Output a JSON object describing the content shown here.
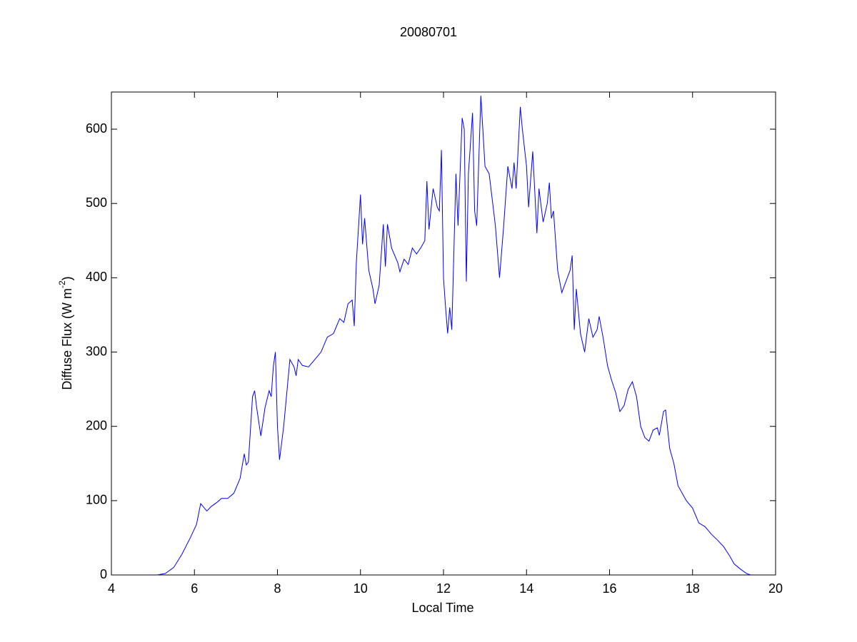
{
  "chart_data": {
    "type": "line",
    "title": "20080701",
    "xlabel": "Local Time",
    "ylabel": [
      "Diffuse Flux (W m",
      "-2",
      ")"
    ],
    "xlim": [
      4,
      20
    ],
    "xticks": [
      4,
      6,
      8,
      10,
      12,
      14,
      16,
      18,
      20
    ],
    "ylim": [
      0,
      650
    ],
    "yticks": [
      0,
      100,
      200,
      300,
      400,
      500,
      600
    ],
    "grid": false,
    "x": [
      5.1,
      5.3,
      5.5,
      5.7,
      5.9,
      6.05,
      6.15,
      6.3,
      6.4,
      6.55,
      6.65,
      6.8,
      6.95,
      7.1,
      7.2,
      7.25,
      7.3,
      7.4,
      7.45,
      7.5,
      7.6,
      7.7,
      7.8,
      7.85,
      7.9,
      7.95,
      8.0,
      8.05,
      8.15,
      8.25,
      8.3,
      8.4,
      8.45,
      8.5,
      8.6,
      8.75,
      8.9,
      9.05,
      9.2,
      9.35,
      9.5,
      9.6,
      9.7,
      9.8,
      9.85,
      9.9,
      10.0,
      10.05,
      10.1,
      10.2,
      10.3,
      10.35,
      10.45,
      10.55,
      10.6,
      10.65,
      10.75,
      10.9,
      10.95,
      11.05,
      11.15,
      11.25,
      11.35,
      11.45,
      11.55,
      11.6,
      11.65,
      11.75,
      11.85,
      11.9,
      11.95,
      12.0,
      12.05,
      12.1,
      12.15,
      12.2,
      12.3,
      12.35,
      12.45,
      12.5,
      12.55,
      12.6,
      12.7,
      12.75,
      12.8,
      12.9,
      13.0,
      13.1,
      13.25,
      13.35,
      13.45,
      13.55,
      13.65,
      13.7,
      13.75,
      13.85,
      13.9,
      14.0,
      14.05,
      14.15,
      14.25,
      14.3,
      14.4,
      14.5,
      14.55,
      14.6,
      14.65,
      14.75,
      14.85,
      14.95,
      15.05,
      15.1,
      15.15,
      15.2,
      15.3,
      15.4,
      15.5,
      15.6,
      15.7,
      15.75,
      15.85,
      15.95,
      16.05,
      16.15,
      16.25,
      16.35,
      16.45,
      16.55,
      16.65,
      16.75,
      16.85,
      16.95,
      17.05,
      17.15,
      17.2,
      17.3,
      17.35,
      17.45,
      17.55,
      17.65,
      17.85,
      18.0,
      18.15,
      18.3,
      18.45,
      18.6,
      18.75,
      18.9,
      19.0,
      19.15,
      19.3,
      19.4
    ],
    "series": [
      {
        "color": "#0000ff",
        "values": [
          0,
          2,
          10,
          28,
          50,
          68,
          96,
          86,
          92,
          98,
          103,
          103,
          110,
          130,
          163,
          148,
          152,
          240,
          248,
          225,
          187,
          225,
          248,
          240,
          280,
          300,
          200,
          155,
          200,
          260,
          290,
          280,
          268,
          290,
          282,
          280,
          290,
          300,
          320,
          325,
          345,
          340,
          365,
          370,
          335,
          420,
          512,
          445,
          480,
          410,
          385,
          365,
          390,
          472,
          415,
          472,
          440,
          420,
          408,
          425,
          418,
          440,
          432,
          440,
          450,
          530,
          465,
          520,
          495,
          490,
          572,
          400,
          360,
          325,
          360,
          330,
          540,
          470,
          615,
          600,
          395,
          540,
          622,
          490,
          470,
          645,
          550,
          540,
          470,
          400,
          470,
          550,
          520,
          555,
          520,
          630,
          600,
          550,
          495,
          570,
          460,
          520,
          475,
          500,
          528,
          480,
          490,
          410,
          380,
          395,
          410,
          430,
          330,
          385,
          325,
          300,
          345,
          320,
          330,
          348,
          318,
          282,
          262,
          245,
          220,
          228,
          250,
          260,
          240,
          200,
          185,
          180,
          195,
          198,
          188,
          220,
          222,
          170,
          150,
          120,
          100,
          90,
          70,
          65,
          55,
          47,
          38,
          25,
          15,
          8,
          2,
          0
        ]
      }
    ]
  }
}
